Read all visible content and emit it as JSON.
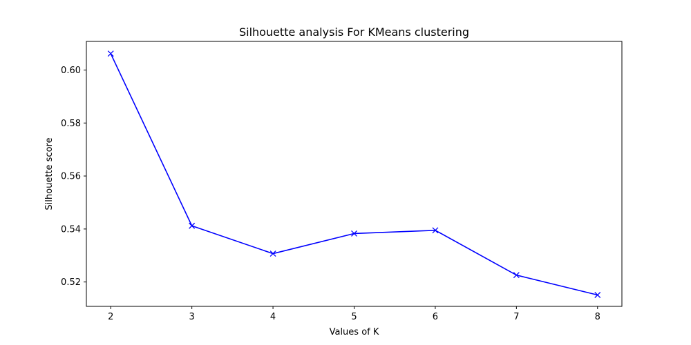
{
  "chart_data": {
    "type": "line",
    "title": "Silhouette analysis For KMeans clustering",
    "xlabel": "Values of K",
    "ylabel": "Silhouette score",
    "x": [
      2,
      3,
      4,
      5,
      6,
      7,
      8
    ],
    "series": [
      {
        "values": [
          0.6062,
          0.5412,
          0.5307,
          0.5383,
          0.5395,
          0.5226,
          0.5151
        ]
      }
    ],
    "xlim": [
      1.7,
      8.3
    ],
    "ylim": [
      0.5108,
      0.6108
    ],
    "xticks": [
      2,
      3,
      4,
      5,
      6,
      7,
      8
    ],
    "xtick_labels": [
      "2",
      "3",
      "4",
      "5",
      "6",
      "7",
      "8"
    ],
    "yticks": [
      0.52,
      0.54,
      0.56,
      0.58,
      0.6
    ],
    "ytick_labels": [
      "0.52",
      "0.54",
      "0.56",
      "0.58",
      "0.60"
    ],
    "marker": "x",
    "grid": false,
    "line_color": "#0000ff"
  }
}
